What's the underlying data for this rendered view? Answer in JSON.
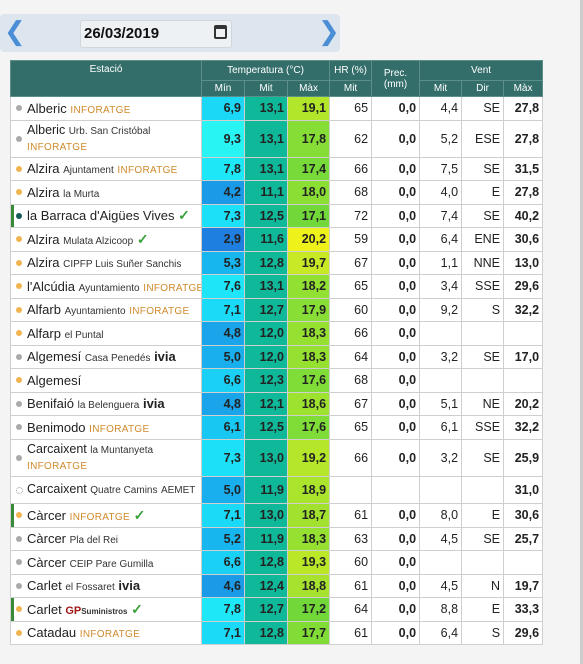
{
  "date": "26/03/2019",
  "headers": {
    "station": "Estació",
    "temperature": "Temperatura (°C)",
    "hr": "HR (%)",
    "prec": "Prec. (mm)",
    "wind": "Vent",
    "t_min": "Mín",
    "t_mid": "Mit",
    "t_max": "Màx",
    "hr_mid": "Mit",
    "w_mid": "Mit",
    "w_dir": "Dir",
    "w_max": "Màx"
  },
  "rows": [
    {
      "name": "Alberic",
      "sub": "",
      "tag": "INFORATGE",
      "dot": "gray",
      "wrap": false,
      "tmin": "6,9",
      "tmid": "13,1",
      "tmax": "19,1",
      "hr": "65",
      "prec": "0,0",
      "wmid": "4,4",
      "wdir": "SE",
      "wmax": "27,8"
    },
    {
      "name": "Alberic",
      "sub": "Urb. San Cristóbal",
      "tag": "INFORATGE",
      "dot": "gray",
      "wrap": true,
      "tmin": "9,3",
      "tmid": "13,1",
      "tmax": "17,8",
      "hr": "62",
      "prec": "0,0",
      "wmid": "5,2",
      "wdir": "ESE",
      "wmax": "27,8"
    },
    {
      "name": "Alzira",
      "sub": "Ajuntament",
      "tag": "INFORATGE",
      "dot": "orange",
      "tmin": "7,8",
      "tmid": "13,1",
      "tmax": "17,4",
      "hr": "66",
      "prec": "0,0",
      "wmid": "7,5",
      "wdir": "SE",
      "wmax": "31,5"
    },
    {
      "name": "Alzira",
      "sub": "la Murta",
      "tag": "",
      "dot": "orange",
      "tmin": "4,2",
      "tmid": "11,1",
      "tmax": "18,0",
      "hr": "68",
      "prec": "0,0",
      "wmid": "4,0",
      "wdir": "E",
      "wmax": "27,8"
    },
    {
      "name": "la Barraca d'Aigües Vives",
      "sub": "",
      "tag": "",
      "dot": "teal",
      "check": true,
      "bar": true,
      "tmin": "7,3",
      "tmid": "12,5",
      "tmax": "17,1",
      "hr": "72",
      "prec": "0,0",
      "wmid": "7,4",
      "wdir": "SE",
      "wmax": "40,2"
    },
    {
      "name": "Alzira",
      "sub": "Mulata Alzicoop",
      "tag": "",
      "dot": "orange",
      "check": true,
      "tmin": "2,9",
      "tmid": "11,6",
      "tmax": "20,2",
      "hr": "59",
      "prec": "0,0",
      "wmid": "6,4",
      "wdir": "ENE",
      "wmax": "30,6"
    },
    {
      "name": "Alzira",
      "sub": "CIPFP Luis Suñer Sanchis",
      "tag": "",
      "dot": "orange",
      "tmin": "5,3",
      "tmid": "12,8",
      "tmax": "19,7",
      "hr": "67",
      "prec": "0,0",
      "wmid": "1,1",
      "wdir": "NNE",
      "wmax": "13,0"
    },
    {
      "name": "l'Alcúdia",
      "sub": "Ayuntamiento",
      "tag": "INFORATGE",
      "dot": "orange",
      "tmin": "7,6",
      "tmid": "13,1",
      "tmax": "18,2",
      "hr": "65",
      "prec": "0,0",
      "wmid": "3,4",
      "wdir": "SSE",
      "wmax": "29,6"
    },
    {
      "name": "Alfarb",
      "sub": "Ayuntamiento",
      "tag": "INFORATGE",
      "dot": "orange",
      "tmin": "7,1",
      "tmid": "12,7",
      "tmax": "17,9",
      "hr": "60",
      "prec": "0,0",
      "wmid": "9,2",
      "wdir": "S",
      "wmax": "32,2"
    },
    {
      "name": "Alfarp",
      "sub": "el Puntal",
      "tag": "",
      "dot": "orange",
      "tmin": "4,8",
      "tmid": "12,0",
      "tmax": "18,3",
      "hr": "66",
      "prec": "0,0",
      "wmid": "",
      "wdir": "",
      "wmax": ""
    },
    {
      "name": "Algemesí",
      "sub": "Casa Penedés",
      "tag": "ivia",
      "dot": "gray",
      "tmin": "5,0",
      "tmid": "12,0",
      "tmax": "18,3",
      "hr": "64",
      "prec": "0,0",
      "wmid": "3,2",
      "wdir": "SE",
      "wmax": "17,0"
    },
    {
      "name": "Algemesí",
      "sub": "",
      "tag": "",
      "dot": "orange",
      "tmin": "6,6",
      "tmid": "12,3",
      "tmax": "17,6",
      "hr": "68",
      "prec": "0,0",
      "wmid": "",
      "wdir": "",
      "wmax": ""
    },
    {
      "name": "Benifaió",
      "sub": "la Belenguera",
      "tag": "ivia",
      "dot": "gray",
      "tmin": "4,8",
      "tmid": "12,1",
      "tmax": "18,6",
      "hr": "67",
      "prec": "0,0",
      "wmid": "5,1",
      "wdir": "NE",
      "wmax": "20,2"
    },
    {
      "name": "Benimodo",
      "sub": "",
      "tag": "INFORATGE",
      "dot": "gray",
      "tmin": "6,1",
      "tmid": "12,5",
      "tmax": "17,6",
      "hr": "65",
      "prec": "0,0",
      "wmid": "6,1",
      "wdir": "SSE",
      "wmax": "32,2"
    },
    {
      "name": "Carcaixent",
      "sub": "la Muntanyeta",
      "tag": "INFORATGE",
      "dot": "gray",
      "wrap": true,
      "tmin": "7,3",
      "tmid": "13,0",
      "tmax": "19,2",
      "hr": "66",
      "prec": "0,0",
      "wmid": "3,2",
      "wdir": "SE",
      "wmax": "25,9"
    },
    {
      "name": "Carcaixent",
      "sub": "Quatre Camins",
      "tag": "AEMET",
      "dot": "empty",
      "wrap": true,
      "tmin": "5,0",
      "tmid": "11,9",
      "tmax": "18,9",
      "hr": "",
      "prec": "",
      "wmid": "",
      "wdir": "",
      "wmax": "31,0"
    },
    {
      "name": "Càrcer",
      "sub": "",
      "tag": "INFORATGE",
      "dot": "orange",
      "check": true,
      "bar": true,
      "tmin": "7,1",
      "tmid": "13,0",
      "tmax": "18,7",
      "hr": "61",
      "prec": "0,0",
      "wmid": "8,0",
      "wdir": "E",
      "wmax": "30,6"
    },
    {
      "name": "Càrcer",
      "sub": "Pla del Rei",
      "tag": "",
      "dot": "gray",
      "tmin": "5,2",
      "tmid": "11,9",
      "tmax": "18,3",
      "hr": "63",
      "prec": "0,0",
      "wmid": "4,5",
      "wdir": "SE",
      "wmax": "25,7"
    },
    {
      "name": "Càrcer",
      "sub": "CEIP Pare Gumilla",
      "tag": "",
      "dot": "gray",
      "tmin": "6,6",
      "tmid": "12,8",
      "tmax": "19,3",
      "hr": "60",
      "prec": "0,0",
      "wmid": "",
      "wdir": "",
      "wmax": ""
    },
    {
      "name": "Carlet",
      "sub": "el Fossaret",
      "tag": "ivia",
      "dot": "gray",
      "tmin": "4,6",
      "tmid": "12,4",
      "tmax": "18,8",
      "hr": "61",
      "prec": "0,0",
      "wmid": "4,5",
      "wdir": "N",
      "wmax": "19,7"
    },
    {
      "name": "Carlet",
      "sub": "",
      "tag": "GP",
      "tag2": "Suministros",
      "dot": "orange",
      "check": true,
      "bar": true,
      "tmin": "7,8",
      "tmid": "12,7",
      "tmax": "17,2",
      "hr": "64",
      "prec": "0,0",
      "wmid": "8,8",
      "wdir": "E",
      "wmax": "33,3"
    },
    {
      "name": "Catadau",
      "sub": "",
      "tag": "INFORATGE",
      "dot": "orange",
      "tmin": "7,1",
      "tmid": "12,8",
      "tmax": "17,7",
      "hr": "61",
      "prec": "0,0",
      "wmid": "6,4",
      "wdir": "S",
      "wmax": "29,6"
    }
  ],
  "colors": {
    "header_bg": "#336e6a",
    "tmin_scale": {
      "2,9": "#1f7fe0",
      "4,2": "#1b9ae8",
      "4,6": "#1b9ae8",
      "4,8": "#1aa4ea",
      "5,0": "#19aeed",
      "5,2": "#18b6ef",
      "5,3": "#18b6ef",
      "6,1": "#19c8f2",
      "6,6": "#1ad0f5",
      "6,9": "#1ad8f6",
      "7,1": "#1adaf7",
      "7,3": "#1ce0f7",
      "7,6": "#1ee6f8",
      "7,8": "#1ee8f8",
      "9,3": "#28f4f4"
    },
    "tmid": "#10b89a",
    "tmax_scale": {
      "17,1": "#72d83a",
      "17,2": "#72d83a",
      "17,4": "#78da38",
      "17,6": "#80dc36",
      "17,7": "#82dc36",
      "17,8": "#86dd35",
      "17,9": "#88de35",
      "18,0": "#8ade34",
      "18,2": "#92e032",
      "18,3": "#96e031",
      "18,6": "#9ee230",
      "18,7": "#a2e22f",
      "18,8": "#a6e22e",
      "18,9": "#aae42d",
      "19,1": "#b2e62b",
      "19,2": "#b6e62a",
      "19,3": "#bae829",
      "19,7": "#c8ea26",
      "20,2": "#eef21a"
    }
  }
}
